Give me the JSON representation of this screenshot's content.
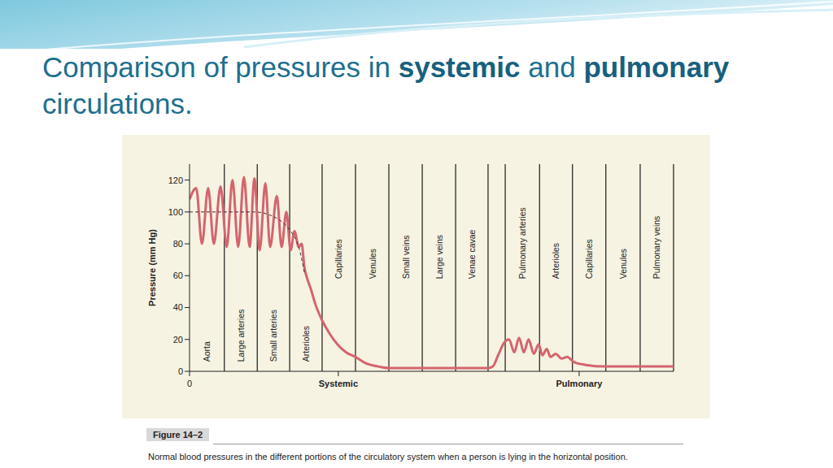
{
  "slide_title": [
    [
      {
        "text": "Comparison of pressures in ",
        "bold": false
      },
      {
        "text": "systemic",
        "bold": true
      },
      {
        "text": " and ",
        "bold": false
      },
      {
        "text": "pulmonary",
        "bold": true
      }
    ],
    [
      {
        "text": "circulations.",
        "bold": false
      }
    ]
  ],
  "figure_label": "Figure 14–2",
  "caption": "Normal blood pressures in the different portions of the circulatory system when a person is lying in the horizontal position.",
  "chart_data": {
    "type": "line",
    "y_label": "Pressure (mm Hg)",
    "xlim": [
      0,
      101.5
    ],
    "xticks": [
      0,
      {
        "value": 31.2,
        "label": "Systemic"
      },
      {
        "value": 81.7,
        "label": "Pulmonary"
      }
    ],
    "ylim": [
      0,
      130
    ],
    "yticks": [
      0,
      20,
      40,
      60,
      80,
      100,
      120
    ],
    "grid": false,
    "regions": [
      {
        "label": "Aorta",
        "x0": 0,
        "x1": 7.3
      },
      {
        "label": "Large arteries",
        "x0": 7.3,
        "x1": 14.2
      },
      {
        "label": "Small arteries",
        "x0": 14.2,
        "x1": 21.0
      },
      {
        "label": "Arterioles",
        "x0": 21.0,
        "x1": 27.8
      },
      {
        "label": "Capillaries",
        "x0": 27.8,
        "x1": 34.8
      },
      {
        "label": "Venules",
        "x0": 34.8,
        "x1": 41.8
      },
      {
        "label": "Small veins",
        "x0": 41.8,
        "x1": 48.8
      },
      {
        "label": "Large veins",
        "x0": 48.8,
        "x1": 55.8
      },
      {
        "label": "Venae cavae",
        "x0": 55.8,
        "x1": 62.6
      },
      {
        "label": "Pulmonary arteries",
        "x0": 66.2,
        "x1": 73.4
      },
      {
        "label": "Arterioles",
        "x0": 73.4,
        "x1": 80.3
      },
      {
        "label": "Capillaries",
        "x0": 80.3,
        "x1": 87.3
      },
      {
        "label": "Venules",
        "x0": 87.3,
        "x1": 94.5
      },
      {
        "label": "Pulmonary veins",
        "x0": 94.5,
        "x1": 101.5
      }
    ],
    "series": [
      {
        "color": "#d4646e",
        "line_style": "solid",
        "x": [
          0,
          1.4,
          2.6,
          3.9,
          5.1,
          6.5,
          7.8,
          9.0,
          10.2,
          11.4,
          12.6,
          13.6,
          14.7,
          15.9,
          16.9,
          18.3,
          19.3,
          20.3,
          21.2,
          22.0,
          22.9,
          23.5,
          24.1,
          24.7,
          25.4,
          26.4,
          27.8,
          29.3,
          31.0,
          32.8,
          34.8,
          37.0,
          39.6,
          41.8,
          52.4,
          62.6,
          63.6,
          64.7,
          66.0,
          67.0,
          68.1,
          69.1,
          70.1,
          71.1,
          72.2,
          73.2,
          74.0,
          74.9,
          75.7,
          76.8,
          78.0,
          79.2,
          80.5,
          83.1,
          87.3,
          101.5
        ],
        "values": [
          108,
          115,
          80,
          115,
          80,
          116,
          78,
          120,
          78,
          122,
          78,
          121,
          76,
          118,
          78,
          110,
          78,
          100,
          76,
          88,
          78,
          80,
          65,
          58,
          52,
          42,
          32,
          24,
          17,
          12,
          9,
          5,
          3,
          2,
          2,
          2,
          3,
          10,
          18,
          20,
          12,
          21,
          12,
          20,
          11,
          17,
          10,
          14,
          9,
          11,
          8,
          9,
          6,
          4,
          3,
          3
        ]
      },
      {
        "color": "#333333",
        "line_style": "dashed",
        "x": [
          0,
          13.6,
          16.9,
          19.3,
          21.2,
          22.9,
          24.1
        ],
        "values": [
          100,
          100,
          98,
          94,
          88,
          78,
          62
        ]
      }
    ]
  }
}
